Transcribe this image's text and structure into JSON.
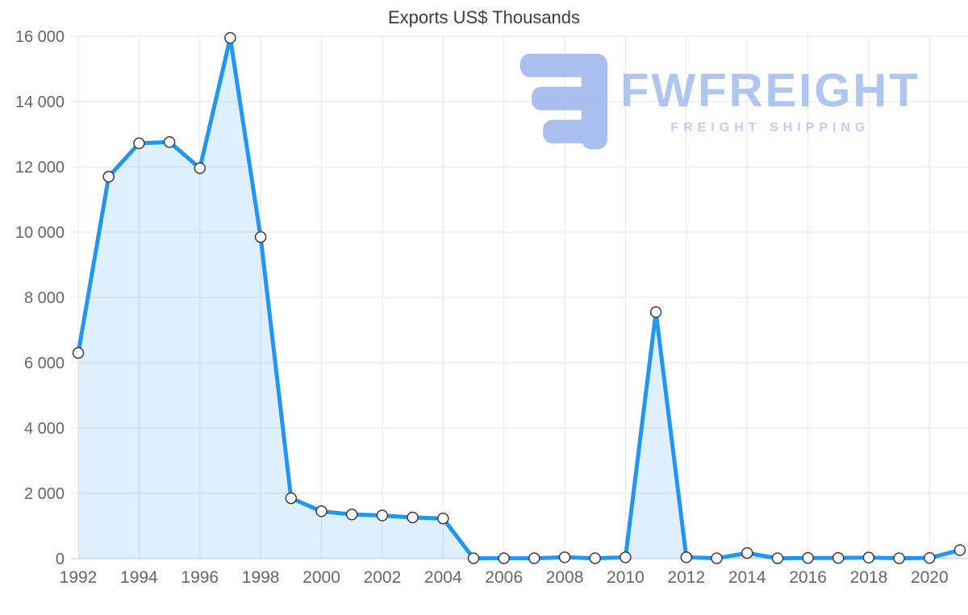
{
  "watermark": {
    "brand": "FWFREIGHT",
    "tagline": "FREIGHT SHIPPING",
    "logo_color": "#9fb7ec",
    "brand_color": "#a3bfee",
    "tagline_color": "#b7c9f2"
  },
  "chart_data": {
    "type": "area",
    "title": "Exports US$ Thousands",
    "series_name": "Exports US$ Thousands",
    "x": [
      1992,
      1993,
      1994,
      1995,
      1996,
      1997,
      1998,
      1999,
      2000,
      2001,
      2002,
      2003,
      2004,
      2005,
      2006,
      2007,
      2008,
      2009,
      2010,
      2011,
      2012,
      2013,
      2014,
      2015,
      2016,
      2017,
      2018,
      2019,
      2020,
      2021
    ],
    "values": [
      6300,
      11700,
      12720,
      12760,
      11960,
      15950,
      9850,
      1850,
      1450,
      1350,
      1320,
      1260,
      1230,
      10,
      10,
      10,
      40,
      10,
      40,
      7550,
      40,
      10,
      170,
      10,
      20,
      20,
      30,
      10,
      20,
      260
    ],
    "xlabel": "",
    "ylabel": "",
    "xlim": [
      1992,
      2021
    ],
    "ylim": [
      0,
      16000
    ],
    "xticks": {
      "start": 1992,
      "end": 2020,
      "step": 2
    },
    "yticks": {
      "step": 2000
    },
    "grid": true,
    "legend": "none",
    "markers": true,
    "colors": {
      "line": "#2196f3",
      "fill": "rgba(33,150,243,0.15)",
      "marker_fill": "#ffffff",
      "marker_stroke": "#3a3a3a",
      "grid": "#e6e6e6",
      "axis_line": "#c9c9c9",
      "axis_text": "#666666",
      "title_text": "#3c3c3c"
    }
  }
}
